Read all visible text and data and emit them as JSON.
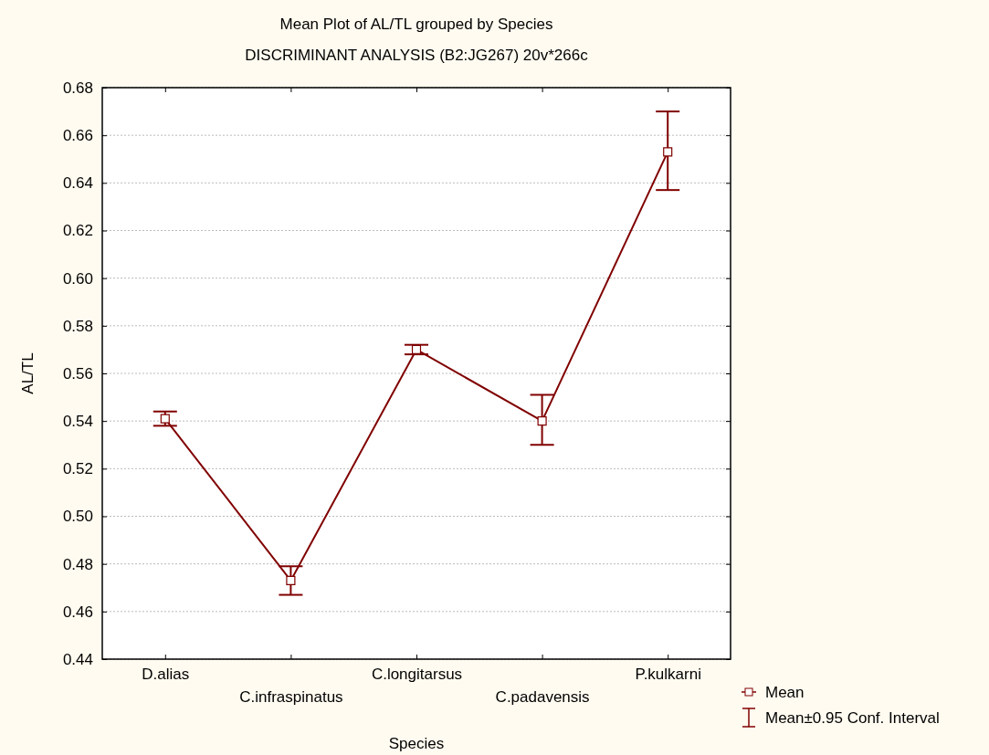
{
  "chart_data": {
    "type": "line",
    "title": "Mean Plot of AL/TL grouped by  Species",
    "subtitle": "DISCRIMINANT ANALYSIS (B2:JG267) 20v*266c",
    "xlabel": "Species",
    "ylabel": "AL/TL",
    "categories": [
      "D.alias",
      "C.infraspinatus",
      "C.longitarsus",
      "C.padavensis",
      "P.kulkarni"
    ],
    "series": [
      {
        "name": "Mean",
        "color": "#800000",
        "values": [
          0.541,
          0.473,
          0.57,
          0.54,
          0.653
        ],
        "errors": [
          [
            0.538,
            0.544
          ],
          [
            0.467,
            0.479
          ],
          [
            0.568,
            0.572
          ],
          [
            0.53,
            0.551
          ],
          [
            0.637,
            0.67
          ]
        ]
      }
    ],
    "ylim": [
      0.44,
      0.68
    ],
    "yticks": [
      {
        "value": 0.44,
        "label": "0.44"
      },
      {
        "value": 0.46,
        "label": "0.46"
      },
      {
        "value": 0.48,
        "label": "0.48"
      },
      {
        "value": 0.5,
        "label": "0.50"
      },
      {
        "value": 0.52,
        "label": "0.52"
      },
      {
        "value": 0.54,
        "label": "0.54"
      },
      {
        "value": 0.56,
        "label": "0.56"
      },
      {
        "value": 0.58,
        "label": "0.58"
      },
      {
        "value": 0.6,
        "label": "0.60"
      },
      {
        "value": 0.62,
        "label": "0.62"
      },
      {
        "value": 0.64,
        "label": "0.64"
      },
      {
        "value": 0.66,
        "label": "0.66"
      },
      {
        "value": 0.68,
        "label": "0.68"
      }
    ],
    "grid": "y",
    "marker": "square",
    "line_style": "solid",
    "legend": "bottom right",
    "annotations": [
      "Mean±0.95 Conf. Interval"
    ]
  }
}
